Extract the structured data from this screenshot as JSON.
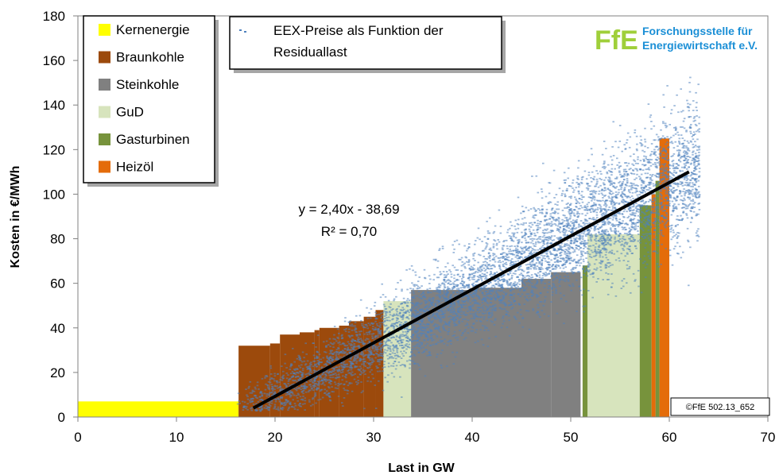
{
  "chart_data": {
    "type": "scatter",
    "xlabel": "Last in GW",
    "ylabel": "Kosten in €/MWh",
    "xlim": [
      0,
      70
    ],
    "ylim": [
      0,
      180
    ],
    "x_ticks": [
      0,
      10,
      20,
      30,
      40,
      50,
      60,
      70
    ],
    "y_ticks": [
      0,
      20,
      40,
      60,
      80,
      100,
      120,
      140,
      160,
      180
    ],
    "grid": false,
    "merit_order": [
      {
        "name": "Kernenergie",
        "color": "#ffff00",
        "segments": [
          [
            0,
            16.3,
            7
          ]
        ]
      },
      {
        "name": "Braunkohle",
        "color": "#9c4a0c",
        "segments": [
          [
            16.3,
            19.5,
            32
          ],
          [
            19.5,
            20.5,
            33
          ],
          [
            20.5,
            22.5,
            37
          ],
          [
            22.5,
            24,
            38
          ],
          [
            24,
            24.5,
            39
          ],
          [
            24.5,
            26.5,
            40
          ],
          [
            26.5,
            27.5,
            41
          ],
          [
            27.5,
            29,
            43
          ],
          [
            29,
            30.2,
            45
          ],
          [
            30.2,
            31,
            48
          ]
        ]
      },
      {
        "name": "GuD",
        "color": "#d7e4bd",
        "segments": [
          [
            31,
            33.8,
            52
          ],
          [
            51.7,
            57,
            82
          ]
        ]
      },
      {
        "name": "Steinkohle",
        "color": "#808080",
        "segments": [
          [
            33.8,
            40,
            57
          ],
          [
            40,
            45,
            58
          ],
          [
            45,
            48,
            62
          ],
          [
            48,
            51,
            65
          ]
        ]
      },
      {
        "name": "Gasturbinen",
        "color": "#77933c",
        "segments": [
          [
            51.2,
            51.7,
            68
          ],
          [
            57,
            58.2,
            95
          ],
          [
            58.6,
            59,
            106
          ]
        ]
      },
      {
        "name": "Heizöl",
        "color": "#e46c0a",
        "segments": [
          [
            58.2,
            58.6,
            100
          ],
          [
            59,
            60,
            125
          ]
        ]
      }
    ],
    "scatter_series": {
      "name": "EEX-Preise als Funktion der Residuallast",
      "color": "#4f81bd",
      "note": "dense cloud of hourly prices, approx. y = 2.40x - 38.69 with spread",
      "x_range": [
        16,
        63
      ],
      "y_range": [
        -2,
        160
      ]
    },
    "regression": {
      "x": [
        17.8,
        62
      ],
      "y": [
        4,
        110
      ],
      "equation": "y = 2,40x - 38,69",
      "r2": "R² = 0,70"
    },
    "legend": {
      "placement": "top-left",
      "entries": [
        {
          "label": "Kernenergie",
          "color": "#ffff00"
        },
        {
          "label": "Braunkohle",
          "color": "#9c4a0c"
        },
        {
          "label": "Steinkohle",
          "color": "#808080"
        },
        {
          "label": "GuD",
          "color": "#d7e4bd"
        },
        {
          "label": "Gasturbinen",
          "color": "#77933c"
        },
        {
          "label": "Heizöl",
          "color": "#e46c0a"
        }
      ]
    },
    "scatter_legend": {
      "line1": "EEX-Preise als Funktion der",
      "line2": "Residuallast"
    },
    "logo": {
      "mark": "FfE",
      "line1": "Forschungsstelle für",
      "line2": "Energiewirtschaft e.V."
    },
    "copyright": "©FfE 502.13_652"
  }
}
